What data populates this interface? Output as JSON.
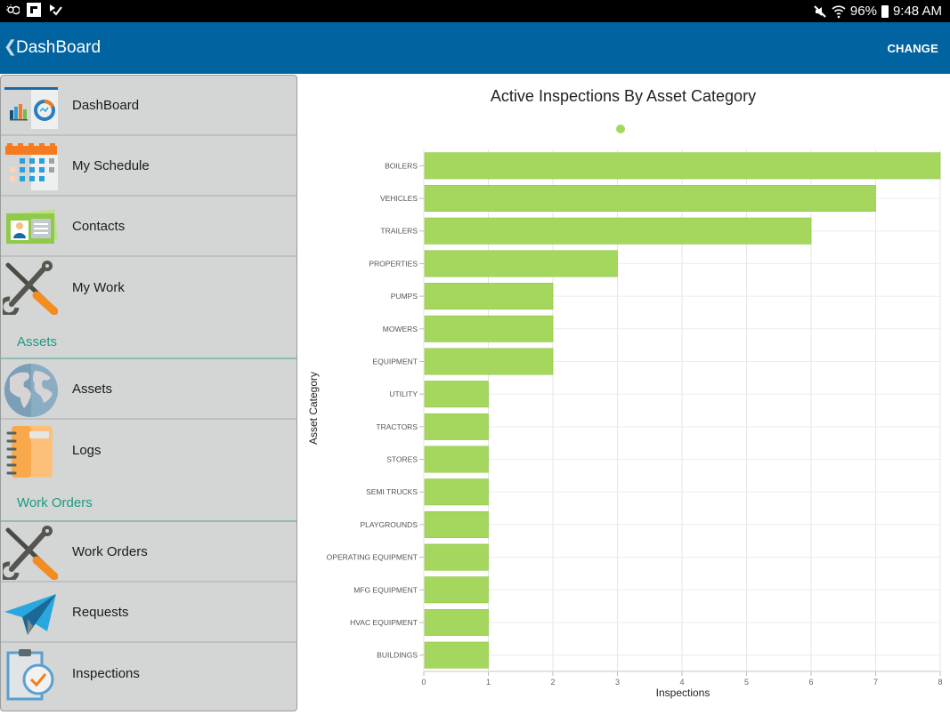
{
  "status_bar": {
    "battery": "96%",
    "time": "9:48 AM",
    "icons": [
      "weather-icon",
      "flipboard-icon",
      "check-icon",
      "mute-icon",
      "wifi-icon",
      "battery-icon"
    ]
  },
  "app_bar": {
    "back_icon": "chevron-left-icon",
    "title": "DashBoard",
    "action": "CHANGE"
  },
  "sidebar": {
    "items": [
      {
        "label": "DashBoard",
        "icon": "dashboard-icon"
      },
      {
        "label": "My Schedule",
        "icon": "calendar-icon"
      },
      {
        "label": "Contacts",
        "icon": "contact-card-icon"
      },
      {
        "label": "My Work",
        "icon": "tools-icon"
      },
      {
        "label": "Assets",
        "icon": "globe-icon"
      },
      {
        "label": "Logs",
        "icon": "notebook-icon"
      },
      {
        "label": "Work Orders",
        "icon": "tools-icon"
      },
      {
        "label": "Requests",
        "icon": "paper-plane-icon"
      },
      {
        "label": "Inspections",
        "icon": "clipboard-check-icon"
      }
    ],
    "sections": [
      "Assets",
      "Work Orders"
    ]
  },
  "colors": {
    "app_bar": "#0263a1",
    "bar": "#a5d65e",
    "bar_edge": "#8cc63e",
    "section": "#1e9a80"
  },
  "chart_data": {
    "type": "bar",
    "orientation": "horizontal",
    "title": "Active Inspections By Asset Category",
    "xlabel": "Inspections",
    "ylabel": "Asset Category",
    "xlim": [
      0,
      8
    ],
    "xticks": [
      0,
      1,
      2,
      3,
      4,
      5,
      6,
      7,
      8
    ],
    "grid": true,
    "legend": {
      "placement": "top-center",
      "entries": [
        ""
      ]
    },
    "categories": [
      "BOILERS",
      "VEHICLES",
      "TRAILERS",
      "PROPERTIES",
      "PUMPS",
      "MOWERS",
      "EQUIPMENT",
      "UTILITY",
      "TRACTORS",
      "STORES",
      "SEMI TRUCKS",
      "PLAYGROUNDS",
      "OPERATING EQUIPMENT",
      "MFG EQUIPMENT",
      "HVAC EQUIPMENT",
      "BUILDINGS"
    ],
    "values": [
      8,
      7,
      6,
      3,
      2,
      2,
      2,
      1,
      1,
      1,
      1,
      1,
      1,
      1,
      1,
      1
    ]
  }
}
